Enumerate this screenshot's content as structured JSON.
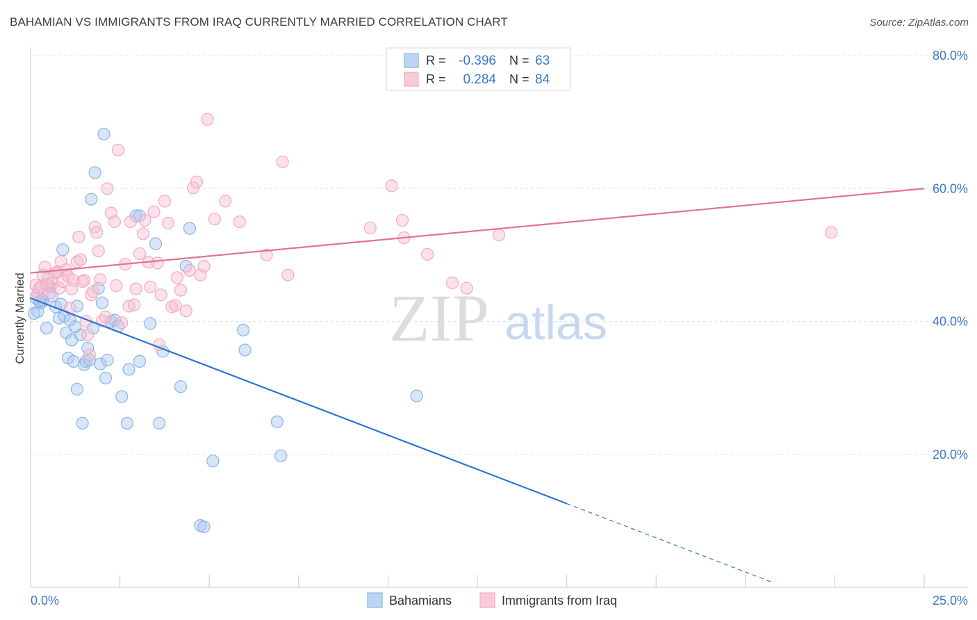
{
  "header": {
    "title": "BAHAMIAN VS IMMIGRANTS FROM IRAQ CURRENTLY MARRIED CORRELATION CHART",
    "source": "Source: ZipAtlas.com"
  },
  "watermark": {
    "zip": "ZIP",
    "atlas": "atlas"
  },
  "legend_box": {
    "rows": [
      {
        "r_label": "R =",
        "r_value": "-0.396",
        "n_label": "N =",
        "n_value": "63",
        "color": "#8ab4e6"
      },
      {
        "r_label": "R =",
        "r_value": "0.284",
        "n_label": "N =",
        "n_value": "84",
        "color": "#f3a9c0"
      }
    ]
  },
  "chart_data": {
    "type": "scatter",
    "title": "BAHAMIAN VS IMMIGRANTS FROM IRAQ CURRENTLY MARRIED CORRELATION CHART",
    "ylabel": "Currently Married",
    "xlabel": "",
    "xlim": [
      0,
      25
    ],
    "ylim": [
      0,
      80
    ],
    "x_tick_labels": [
      "0.0%",
      "25.0%"
    ],
    "y_ticks": [
      20,
      40,
      60,
      80
    ],
    "y_tick_labels": [
      "20.0%",
      "40.0%",
      "60.0%",
      "80.0%"
    ],
    "grid": true,
    "legend": "bottom-center",
    "series": [
      {
        "name": "Bahamians",
        "color": "#8ab4e6",
        "line_color": "#2f74d0",
        "trend": {
          "x0": 0,
          "y0": 43.5,
          "x1": 15,
          "y1": 12.6,
          "dash_to_x": 20.7
        },
        "points": [
          [
            0.15,
            43.5
          ],
          [
            0.2,
            41.5
          ],
          [
            0.3,
            42.8
          ],
          [
            0.35,
            43.2
          ],
          [
            0.5,
            45.5
          ],
          [
            0.45,
            39.0
          ],
          [
            0.6,
            43.8
          ],
          [
            0.7,
            42.2
          ],
          [
            0.8,
            40.5
          ],
          [
            0.85,
            42.6
          ],
          [
            0.9,
            50.8
          ],
          [
            0.95,
            40.8
          ],
          [
            1.0,
            38.3
          ],
          [
            1.05,
            34.5
          ],
          [
            1.1,
            40.2
          ],
          [
            1.15,
            37.2
          ],
          [
            1.2,
            34.0
          ],
          [
            1.3,
            29.8
          ],
          [
            1.3,
            42.3
          ],
          [
            1.4,
            38.0
          ],
          [
            1.45,
            24.7
          ],
          [
            1.5,
            33.5
          ],
          [
            1.55,
            34.0
          ],
          [
            1.6,
            36.0
          ],
          [
            1.65,
            34.2
          ],
          [
            1.7,
            58.4
          ],
          [
            1.75,
            39.0
          ],
          [
            1.8,
            62.4
          ],
          [
            1.9,
            45.0
          ],
          [
            1.95,
            33.6
          ],
          [
            2.0,
            42.8
          ],
          [
            2.05,
            68.2
          ],
          [
            2.1,
            31.5
          ],
          [
            2.15,
            34.2
          ],
          [
            2.25,
            40.0
          ],
          [
            2.35,
            40.2
          ],
          [
            2.45,
            39.3
          ],
          [
            2.55,
            28.7
          ],
          [
            2.7,
            24.7
          ],
          [
            2.75,
            32.8
          ],
          [
            2.95,
            55.9
          ],
          [
            3.05,
            55.9
          ],
          [
            3.05,
            34.0
          ],
          [
            3.35,
            39.7
          ],
          [
            3.5,
            51.7
          ],
          [
            3.6,
            24.7
          ],
          [
            3.7,
            35.5
          ],
          [
            4.2,
            30.2
          ],
          [
            4.35,
            48.3
          ],
          [
            4.45,
            54.0
          ],
          [
            4.75,
            9.3
          ],
          [
            4.85,
            9.1
          ],
          [
            5.1,
            19.0
          ],
          [
            5.95,
            38.7
          ],
          [
            6.0,
            35.7
          ],
          [
            6.9,
            24.9
          ],
          [
            7.0,
            19.8
          ],
          [
            10.8,
            28.8
          ],
          [
            0.1,
            41.2
          ],
          [
            0.25,
            43.0
          ],
          [
            0.55,
            45.2
          ],
          [
            0.75,
            47.5
          ],
          [
            1.25,
            39.2
          ]
        ]
      },
      {
        "name": "Immigrants from Iraq",
        "color": "#f3a9c0",
        "line_color": "#e0709a",
        "trend": {
          "x0": 0,
          "y0": 47.3,
          "x1": 25,
          "y1": 60.0
        },
        "points": [
          [
            0.15,
            45.5
          ],
          [
            0.2,
            44.2
          ],
          [
            0.25,
            45.0
          ],
          [
            0.3,
            45.3
          ],
          [
            0.35,
            47.0
          ],
          [
            0.4,
            48.2
          ],
          [
            0.45,
            45.6
          ],
          [
            0.5,
            46.5
          ],
          [
            0.55,
            44.3
          ],
          [
            0.6,
            45.8
          ],
          [
            0.7,
            47.3
          ],
          [
            0.75,
            47.5
          ],
          [
            0.8,
            45.0
          ],
          [
            0.85,
            49.0
          ],
          [
            0.9,
            46.0
          ],
          [
            1.0,
            47.8
          ],
          [
            1.05,
            46.8
          ],
          [
            1.1,
            42.0
          ],
          [
            1.15,
            44.9
          ],
          [
            1.2,
            46.2
          ],
          [
            1.3,
            49.0
          ],
          [
            1.35,
            52.7
          ],
          [
            1.4,
            49.3
          ],
          [
            1.45,
            46.0
          ],
          [
            1.5,
            46.2
          ],
          [
            1.55,
            40.0
          ],
          [
            1.6,
            38.0
          ],
          [
            1.65,
            35.0
          ],
          [
            1.7,
            44.0
          ],
          [
            1.75,
            44.5
          ],
          [
            1.8,
            54.2
          ],
          [
            1.85,
            53.4
          ],
          [
            1.9,
            50.6
          ],
          [
            1.95,
            46.3
          ],
          [
            2.0,
            40.1
          ],
          [
            2.1,
            40.7
          ],
          [
            2.15,
            60.0
          ],
          [
            2.25,
            56.3
          ],
          [
            2.35,
            55.0
          ],
          [
            2.4,
            45.4
          ],
          [
            2.45,
            65.8
          ],
          [
            2.55,
            39.8
          ],
          [
            2.65,
            48.6
          ],
          [
            2.75,
            42.3
          ],
          [
            2.8,
            55.0
          ],
          [
            2.9,
            42.5
          ],
          [
            2.95,
            44.9
          ],
          [
            3.05,
            50.2
          ],
          [
            3.15,
            53.2
          ],
          [
            3.2,
            55.2
          ],
          [
            3.3,
            48.9
          ],
          [
            3.35,
            45.2
          ],
          [
            3.45,
            56.5
          ],
          [
            3.55,
            48.8
          ],
          [
            3.6,
            36.5
          ],
          [
            3.65,
            44.0
          ],
          [
            3.75,
            58.1
          ],
          [
            3.85,
            54.8
          ],
          [
            3.95,
            42.2
          ],
          [
            4.05,
            42.4
          ],
          [
            4.1,
            46.6
          ],
          [
            4.2,
            44.7
          ],
          [
            4.35,
            41.6
          ],
          [
            4.45,
            47.7
          ],
          [
            4.55,
            60.1
          ],
          [
            4.65,
            61.0
          ],
          [
            4.75,
            47.0
          ],
          [
            4.85,
            48.3
          ],
          [
            4.95,
            70.4
          ],
          [
            5.15,
            55.4
          ],
          [
            5.45,
            58.1
          ],
          [
            5.85,
            55.0
          ],
          [
            6.6,
            50.0
          ],
          [
            7.05,
            64.0
          ],
          [
            7.2,
            47.0
          ],
          [
            9.5,
            54.1
          ],
          [
            10.1,
            60.4
          ],
          [
            10.4,
            55.2
          ],
          [
            10.45,
            52.6
          ],
          [
            11.1,
            50.1
          ],
          [
            11.8,
            45.8
          ],
          [
            12.2,
            45.0
          ],
          [
            13.1,
            53.0
          ],
          [
            22.4,
            53.4
          ]
        ]
      }
    ]
  }
}
